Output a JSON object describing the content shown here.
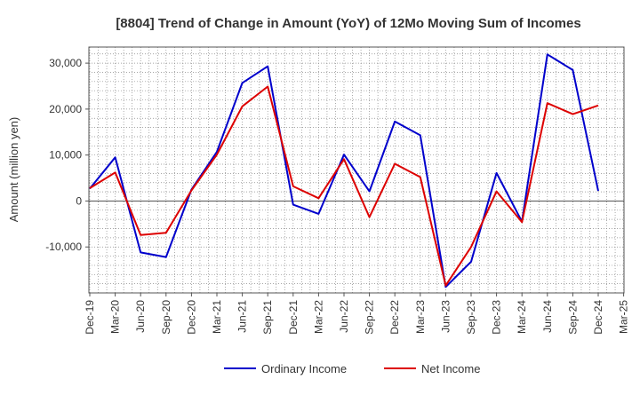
{
  "chart_data": {
    "type": "line",
    "title": "[8804]  Trend of Change in Amount (YoY) of 12Mo Moving Sum of Incomes",
    "xlabel": "",
    "ylabel": "Amount (million yen)",
    "ylim": [
      -20000,
      33500
    ],
    "yticks": [
      30000,
      20000,
      10000,
      0,
      -10000
    ],
    "ytick_labels": [
      "30,000",
      "20,000",
      "10,000",
      "0",
      "-10,000"
    ],
    "x_tick_labels": [
      "Dec-19",
      "Mar-20",
      "Jun-20",
      "Sep-20",
      "Dec-20",
      "Mar-21",
      "Jun-21",
      "Sep-21",
      "Dec-21",
      "Mar-22",
      "Jun-22",
      "Sep-22",
      "Dec-22",
      "Mar-23",
      "Jun-23",
      "Sep-23",
      "Dec-23",
      "Mar-24",
      "Jun-24",
      "Sep-24",
      "Dec-24",
      "Mar-25"
    ],
    "grid": true,
    "legend_position": "bottom-center",
    "series": [
      {
        "name": "Ordinary Income",
        "color": "#0000cc",
        "values": [
          2700,
          9500,
          -11200,
          -12200,
          2500,
          10700,
          25700,
          29300,
          -800,
          -2800,
          10100,
          2100,
          17300,
          14300,
          -18700,
          -13200,
          6100,
          -4500,
          31900,
          28500,
          2200
        ]
      },
      {
        "name": "Net Income",
        "color": "#dd0000",
        "values": [
          2800,
          6200,
          -7400,
          -6900,
          2300,
          10100,
          20600,
          24900,
          3200,
          600,
          9100,
          -3500,
          8100,
          5200,
          -18400,
          -10000,
          2100,
          -4600,
          21300,
          18900,
          20800
        ]
      }
    ]
  }
}
